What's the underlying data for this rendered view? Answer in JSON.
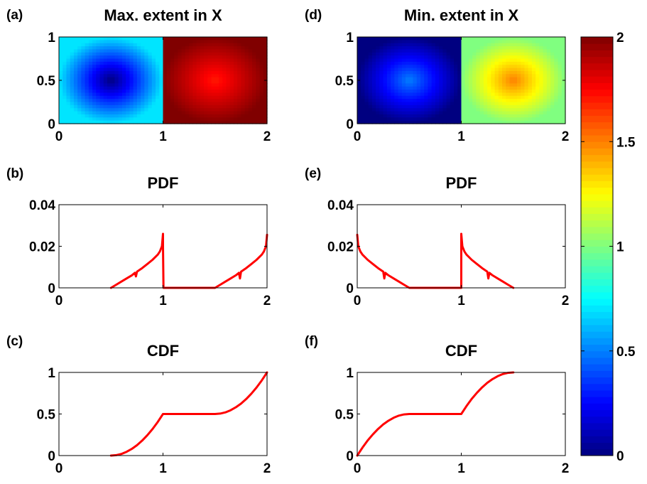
{
  "figure": {
    "colors": {
      "series": "#ff0000",
      "axis": "#000000",
      "background": "#ffffff"
    }
  },
  "chart_data": [
    {
      "id": "a",
      "type": "heatmap",
      "letter": "(a)",
      "title": "Max. extent in X",
      "xlim": [
        0,
        2
      ],
      "ylim": [
        0,
        1
      ],
      "xticks": [
        {
          "v": 0,
          "label": "0"
        },
        {
          "v": 1,
          "label": "1"
        },
        {
          "v": 2,
          "label": "2"
        }
      ],
      "yticks": [
        {
          "v": 0,
          "label": "0"
        },
        {
          "v": 0.5,
          "label": "0.5"
        },
        {
          "v": 1,
          "label": "1"
        }
      ],
      "colormap": "jet",
      "clim": [
        0,
        2
      ],
      "regions": [
        {
          "x": [
            0,
            1
          ],
          "y": [
            0,
            1
          ],
          "center_value": 0.0,
          "edge_value": 0.7,
          "corner_value": 0.71
        },
        {
          "x": [
            1,
            2
          ],
          "y": [
            0,
            1
          ],
          "center_value": 1.7,
          "edge_value": 2.0,
          "corner_value": 2.0
        }
      ]
    },
    {
      "id": "d",
      "type": "heatmap",
      "letter": "(d)",
      "title": "Min. extent in X",
      "xlim": [
        0,
        2
      ],
      "ylim": [
        0,
        1
      ],
      "xticks": [
        {
          "v": 0,
          "label": "0"
        },
        {
          "v": 1,
          "label": "1"
        },
        {
          "v": 2,
          "label": "2"
        }
      ],
      "yticks": [
        {
          "v": 0,
          "label": "0"
        },
        {
          "v": 0.5,
          "label": "0.5"
        },
        {
          "v": 1,
          "label": "1"
        }
      ],
      "colormap": "jet",
      "clim": [
        0,
        2
      ],
      "regions": [
        {
          "x": [
            0,
            1
          ],
          "y": [
            0,
            1
          ],
          "center_value": 0.5,
          "edge_value": 0.0,
          "corner_value": 0.0
        },
        {
          "x": [
            1,
            2
          ],
          "y": [
            0,
            1
          ],
          "center_value": 1.5,
          "edge_value": 1.0,
          "corner_value": 1.0
        }
      ]
    },
    {
      "id": "b",
      "type": "line",
      "letter": "(b)",
      "title": "PDF",
      "xlim": [
        0,
        2
      ],
      "ylim": [
        0,
        0.04
      ],
      "xticks": [
        {
          "v": 0,
          "label": "0"
        },
        {
          "v": 1,
          "label": "1"
        },
        {
          "v": 2,
          "label": "2"
        }
      ],
      "yticks": [
        {
          "v": 0,
          "label": "0"
        },
        {
          "v": 0.02,
          "label": "0.02"
        },
        {
          "v": 0.04,
          "label": "0.04"
        }
      ],
      "series": [
        {
          "x": [
            0.5,
            0.55,
            0.6,
            0.65,
            0.7,
            0.73,
            0.74,
            0.75,
            0.8,
            0.85,
            0.9,
            0.95,
            0.97,
            0.99,
            1.0,
            1.0,
            1.005,
            1.05,
            1.5,
            1.55,
            1.6,
            1.65,
            1.7,
            1.73,
            1.74,
            1.75,
            1.8,
            1.85,
            1.9,
            1.95,
            1.97,
            1.99,
            2.0
          ],
          "y": [
            0.0,
            0.0015,
            0.003,
            0.0045,
            0.006,
            0.0072,
            0.0055,
            0.0078,
            0.0095,
            0.0115,
            0.0135,
            0.016,
            0.0175,
            0.02,
            0.026,
            0.02,
            0.0,
            0.0,
            0.0,
            0.0015,
            0.003,
            0.0045,
            0.006,
            0.0072,
            0.0045,
            0.0078,
            0.0095,
            0.0115,
            0.0135,
            0.016,
            0.0175,
            0.02,
            0.0255
          ]
        }
      ]
    },
    {
      "id": "e",
      "type": "line",
      "letter": "(e)",
      "title": "PDF",
      "xlim": [
        0,
        2
      ],
      "ylim": [
        0,
        0.04
      ],
      "xticks": [
        {
          "v": 0,
          "label": "0"
        },
        {
          "v": 1,
          "label": "1"
        },
        {
          "v": 2,
          "label": "2"
        }
      ],
      "yticks": [
        {
          "v": 0,
          "label": "0"
        },
        {
          "v": 0.02,
          "label": "0.02"
        },
        {
          "v": 0.04,
          "label": "0.04"
        }
      ],
      "series": [
        {
          "x": [
            0.0,
            0.01,
            0.03,
            0.05,
            0.1,
            0.15,
            0.2,
            0.25,
            0.26,
            0.27,
            0.3,
            0.35,
            0.4,
            0.45,
            0.5,
            1.0,
            1.0,
            1.01,
            1.03,
            1.05,
            1.1,
            1.15,
            1.2,
            1.25,
            1.26,
            1.27,
            1.3,
            1.35,
            1.4,
            1.45,
            1.5
          ],
          "y": [
            0.0255,
            0.02,
            0.0175,
            0.016,
            0.0135,
            0.0115,
            0.0095,
            0.0078,
            0.0045,
            0.0072,
            0.006,
            0.0045,
            0.003,
            0.0015,
            0.0,
            0.0,
            0.026,
            0.02,
            0.0175,
            0.016,
            0.0135,
            0.0115,
            0.0095,
            0.0078,
            0.0045,
            0.0072,
            0.006,
            0.0045,
            0.003,
            0.0015,
            0.0
          ]
        }
      ]
    },
    {
      "id": "c",
      "type": "line",
      "letter": "(c)",
      "title": "CDF",
      "xlim": [
        0,
        2
      ],
      "ylim": [
        0,
        1
      ],
      "xticks": [
        {
          "v": 0,
          "label": "0"
        },
        {
          "v": 1,
          "label": "1"
        },
        {
          "v": 2,
          "label": "2"
        }
      ],
      "yticks": [
        {
          "v": 0,
          "label": "0"
        },
        {
          "v": 0.5,
          "label": "0.5"
        },
        {
          "v": 1,
          "label": "1"
        }
      ],
      "series": [
        {
          "x": [
            0.5,
            0.55,
            0.6,
            0.65,
            0.7,
            0.75,
            0.8,
            0.85,
            0.9,
            0.95,
            1.0,
            1.5,
            1.55,
            1.6,
            1.65,
            1.7,
            1.75,
            1.8,
            1.85,
            1.9,
            1.95,
            2.0
          ],
          "y": [
            0.0,
            0.005,
            0.02,
            0.045,
            0.08,
            0.125,
            0.18,
            0.245,
            0.32,
            0.405,
            0.5,
            0.5,
            0.505,
            0.52,
            0.545,
            0.58,
            0.625,
            0.68,
            0.745,
            0.82,
            0.905,
            1.0
          ]
        }
      ]
    },
    {
      "id": "f",
      "type": "line",
      "letter": "(f)",
      "title": "CDF",
      "xlim": [
        0,
        2
      ],
      "ylim": [
        0,
        1
      ],
      "xticks": [
        {
          "v": 0,
          "label": "0"
        },
        {
          "v": 1,
          "label": "1"
        },
        {
          "v": 2,
          "label": "2"
        }
      ],
      "yticks": [
        {
          "v": 0,
          "label": "0"
        },
        {
          "v": 0.5,
          "label": "0.5"
        },
        {
          "v": 1,
          "label": "1"
        }
      ],
      "series": [
        {
          "x": [
            0.0,
            0.05,
            0.1,
            0.15,
            0.2,
            0.25,
            0.3,
            0.35,
            0.4,
            0.45,
            0.5,
            1.0,
            1.05,
            1.1,
            1.15,
            1.2,
            1.25,
            1.3,
            1.35,
            1.4,
            1.45,
            1.5
          ],
          "y": [
            0.0,
            0.095,
            0.18,
            0.255,
            0.32,
            0.375,
            0.42,
            0.455,
            0.48,
            0.495,
            0.5,
            0.5,
            0.595,
            0.68,
            0.755,
            0.82,
            0.875,
            0.92,
            0.955,
            0.98,
            0.995,
            1.0
          ]
        }
      ]
    }
  ],
  "colorbar": {
    "colormap": "jet",
    "range": [
      0,
      2
    ],
    "ticks": [
      {
        "v": 0,
        "label": "0"
      },
      {
        "v": 0.5,
        "label": "0.5"
      },
      {
        "v": 1,
        "label": "1"
      },
      {
        "v": 1.5,
        "label": "1.5"
      },
      {
        "v": 2,
        "label": "2"
      }
    ]
  }
}
